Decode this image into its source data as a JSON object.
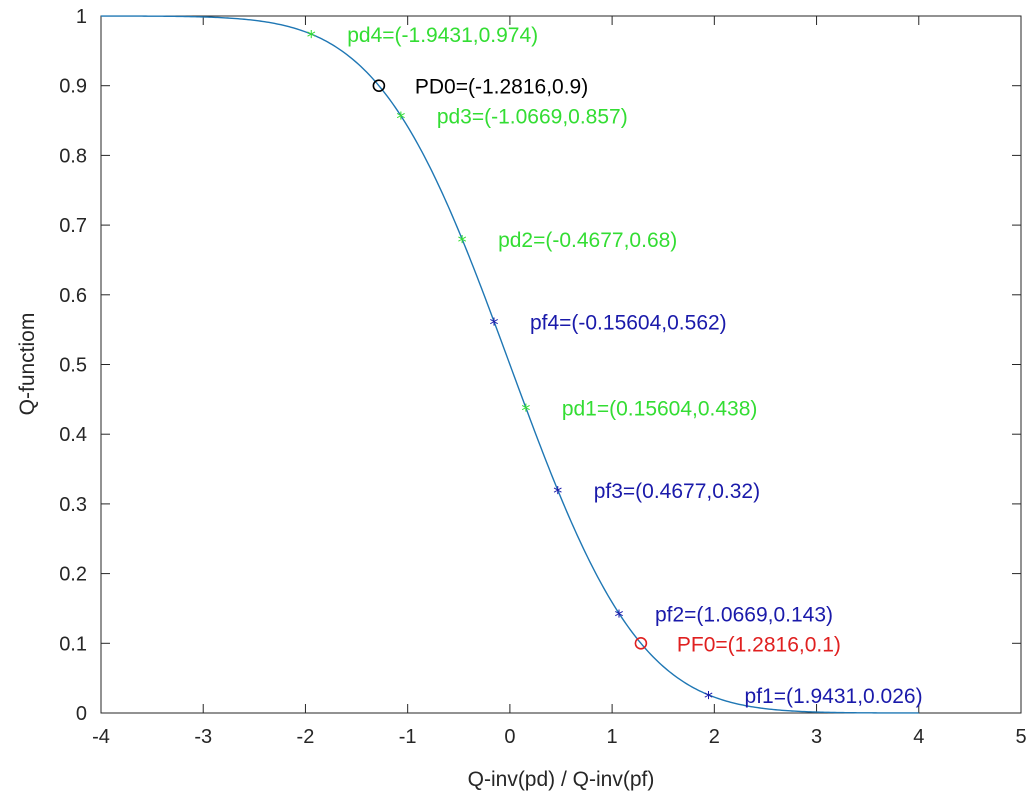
{
  "chart_data": {
    "type": "line",
    "title": "",
    "xlabel": "Q-inv(pd) / Q-inv(pf)",
    "ylabel": "Q-functiom",
    "xlim": [
      -4,
      5
    ],
    "ylim": [
      0,
      1
    ],
    "grid": false,
    "x_ticks": [
      "-4",
      "-3",
      "-2",
      "-1",
      "0",
      "1",
      "2",
      "3",
      "4",
      "5"
    ],
    "y_ticks": [
      "0",
      "0.1",
      "0.2",
      "0.3",
      "0.4",
      "0.5",
      "0.6",
      "0.7",
      "0.8",
      "0.9",
      "1"
    ],
    "series": [
      {
        "function": "Q(x) = 1 - Phi(x)",
        "x_range": [
          -4,
          4
        ],
        "color": "#1f77b4"
      }
    ],
    "markers": [
      {
        "label": "pd4=(-1.9431,0.974)",
        "x": -1.9431,
        "y": 0.974,
        "marker": "*",
        "color": "#33dd33"
      },
      {
        "label": "PD0=(-1.2816,0.9)",
        "x": -1.2816,
        "y": 0.9,
        "marker": "o",
        "color": "#000000"
      },
      {
        "label": "pd3=(-1.0669,0.857)",
        "x": -1.0669,
        "y": 0.857,
        "marker": "*",
        "color": "#33dd33"
      },
      {
        "label": "pd2=(-0.4677,0.68)",
        "x": -0.4677,
        "y": 0.68,
        "marker": "*",
        "color": "#33dd33"
      },
      {
        "label": "pf4=(-0.15604,0.562)",
        "x": -0.15604,
        "y": 0.562,
        "marker": "*",
        "color": "#1a1aaa"
      },
      {
        "label": "pd1=(0.15604,0.438)",
        "x": 0.15604,
        "y": 0.438,
        "marker": "*",
        "color": "#33dd33"
      },
      {
        "label": "pf3=(0.4677,0.32)",
        "x": 0.4677,
        "y": 0.32,
        "marker": "*",
        "color": "#1a1aaa"
      },
      {
        "label": "pf2=(1.0669,0.143)",
        "x": 1.0669,
        "y": 0.143,
        "marker": "*",
        "color": "#1a1aaa"
      },
      {
        "label": "PF0=(1.2816,0.1)",
        "x": 1.2816,
        "y": 0.1,
        "marker": "o",
        "color": "#e02020"
      },
      {
        "label": "pf1=(1.9431,0.026)",
        "x": 1.9431,
        "y": 0.026,
        "marker": "*",
        "color": "#1a1aaa"
      }
    ]
  }
}
